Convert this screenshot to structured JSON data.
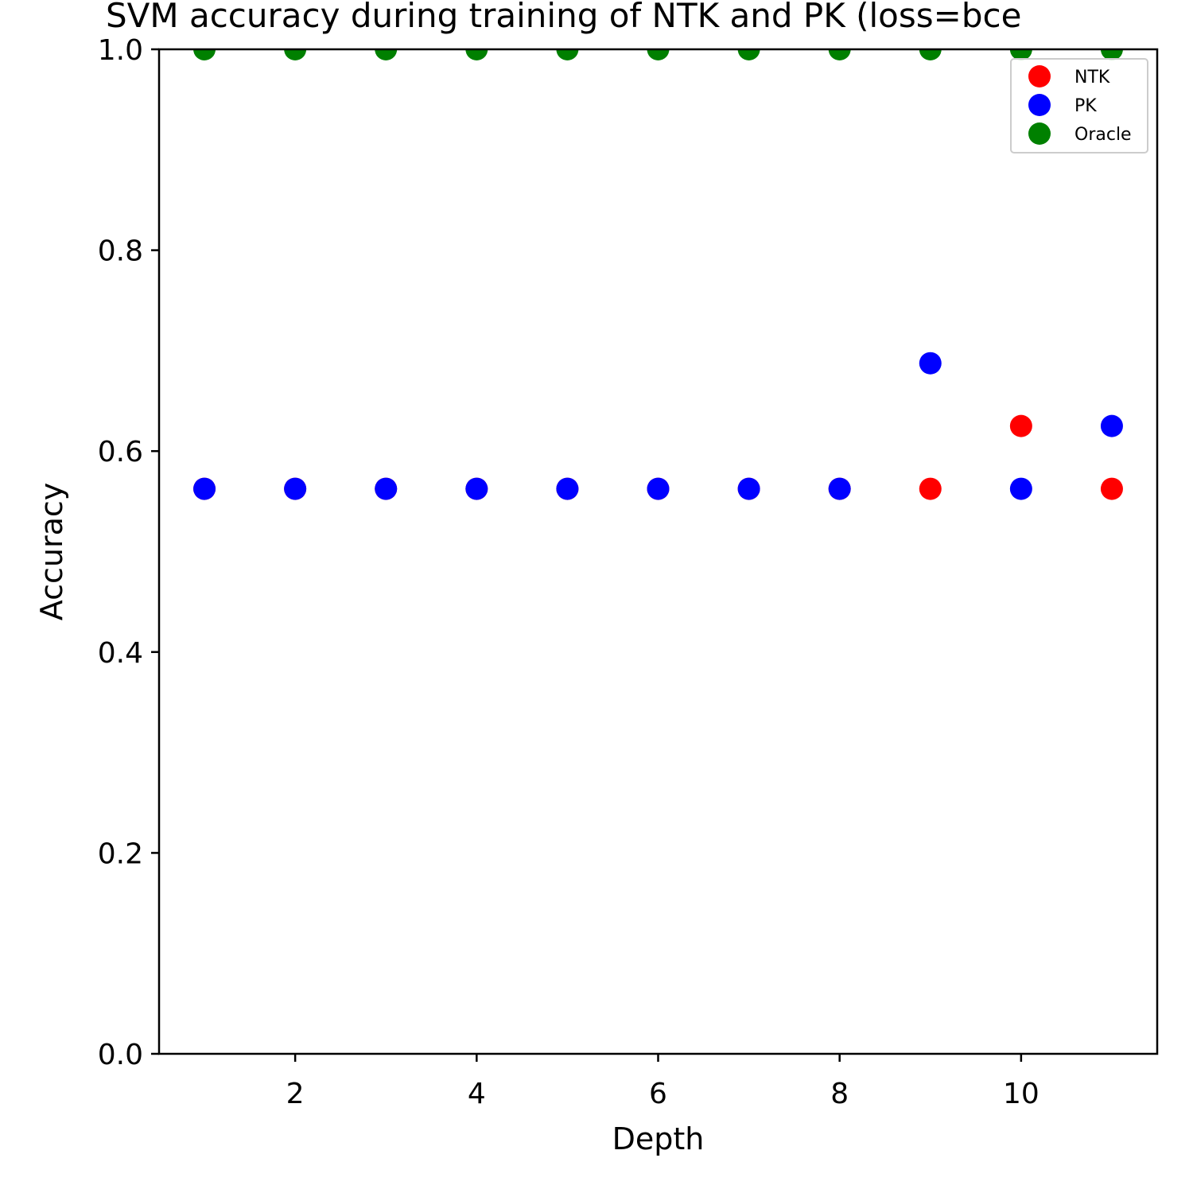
{
  "chart_data": {
    "type": "scatter",
    "title": "SVM accuracy during training of NTK and PK (loss=bce",
    "xlabel": "Depth",
    "ylabel": "Accuracy",
    "xlim": [
      0.5,
      11.5
    ],
    "ylim": [
      0.0,
      1.0
    ],
    "xticks": [
      2,
      4,
      6,
      8,
      10
    ],
    "xtick_labels": [
      "2",
      "4",
      "6",
      "8",
      "10"
    ],
    "yticks": [
      0.0,
      0.2,
      0.4,
      0.6,
      0.8,
      1.0
    ],
    "ytick_labels": [
      "0.0",
      "0.2",
      "0.4",
      "0.6",
      "0.8",
      "1.0"
    ],
    "grid": false,
    "legend_position": "top-right",
    "series": [
      {
        "name": "NTK",
        "color": "#ff0000",
        "x": [
          1,
          2,
          3,
          4,
          5,
          6,
          7,
          8,
          9,
          10,
          11
        ],
        "y": [
          0.5625,
          0.5625,
          0.5625,
          0.5625,
          0.5625,
          0.5625,
          0.5625,
          0.5625,
          0.5625,
          0.625,
          0.5625
        ]
      },
      {
        "name": "PK",
        "color": "#0000ff",
        "x": [
          1,
          2,
          3,
          4,
          5,
          6,
          7,
          8,
          9,
          10,
          11
        ],
        "y": [
          0.5625,
          0.5625,
          0.5625,
          0.5625,
          0.5625,
          0.5625,
          0.5625,
          0.5625,
          0.6875,
          0.5625,
          0.625
        ]
      },
      {
        "name": "Oracle",
        "color": "#008000",
        "x": [
          1,
          2,
          3,
          4,
          5,
          6,
          7,
          8,
          9,
          10,
          11
        ],
        "y": [
          1.0,
          1.0,
          1.0,
          1.0,
          1.0,
          1.0,
          1.0,
          1.0,
          1.0,
          1.0,
          1.0
        ]
      }
    ]
  }
}
